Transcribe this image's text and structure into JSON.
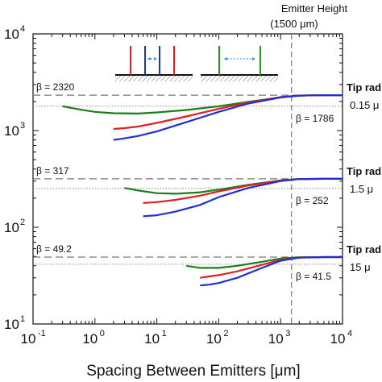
{
  "chart_data": {
    "type": "line",
    "xlabel": "Spacing Between Emitters [μm]",
    "xscale": "log",
    "yscale": "log",
    "xlim": [
      0.1,
      10000
    ],
    "ylim": [
      10,
      10000
    ],
    "x_tick_labels": [
      {
        "base": "10",
        "exp": "-1"
      },
      {
        "base": "10",
        "exp": "0"
      },
      {
        "base": "10",
        "exp": "1"
      },
      {
        "base": "10",
        "exp": "2"
      },
      {
        "base": "10",
        "exp": "3"
      },
      {
        "base": "10",
        "exp": "4"
      }
    ],
    "y_tick_labels": [
      {
        "base": "10",
        "exp": "1"
      },
      {
        "base": "10",
        "exp": "2"
      },
      {
        "base": "10",
        "exp": "3"
      },
      {
        "base": "10",
        "exp": "4"
      }
    ],
    "emitter_height": {
      "line1": "Emitter Height",
      "line2": "(1500 μm)",
      "x": 1500
    },
    "colors": {
      "green": "#1a7f1a",
      "red": "#e02020",
      "blue": "#1f2fd6",
      "axis": "#111111",
      "dash": "#7a7a7a",
      "dot": "#8a8a8a"
    },
    "groups": [
      {
        "tip_label_line1": "Tip rad",
        "tip_label_line2": "0.15 μ",
        "beta_max": 2320,
        "beta_max_label": "β = 2320",
        "beta_ref": 1786,
        "beta_ref_label": "β = 1786",
        "series": [
          {
            "color": "green",
            "x": [
              0.3,
              0.6,
              1,
              2,
              5,
              10,
              30,
              100,
              300,
              1000,
              2000,
              5000,
              10000
            ],
            "y": [
              1780,
              1640,
              1560,
              1510,
              1500,
              1540,
              1630,
              1780,
              1980,
              2200,
              2300,
              2320,
              2320
            ]
          },
          {
            "color": "red",
            "x": [
              2,
              3,
              5,
              10,
              30,
              100,
              300,
              1000,
              2000,
              5000,
              10000
            ],
            "y": [
              1040,
              1060,
              1100,
              1200,
              1400,
              1680,
              1950,
              2220,
              2300,
              2320,
              2320
            ]
          },
          {
            "color": "blue",
            "x": [
              2,
              3,
              5,
              10,
              30,
              100,
              300,
              1000,
              2000,
              5000,
              10000
            ],
            "y": [
              800,
              830,
              880,
              980,
              1220,
              1560,
              1900,
              2200,
              2300,
              2320,
              2320
            ]
          }
        ]
      },
      {
        "tip_label_line1": "Tip rad",
        "tip_label_line2": "1.5 μ",
        "beta_max": 317,
        "beta_max_label": "β = 317",
        "beta_ref": 252,
        "beta_ref_label": "β = 252",
        "series": [
          {
            "color": "green",
            "x": [
              3,
              5,
              10,
              20,
              50,
              100,
              300,
              1000,
              2000,
              5000,
              10000
            ],
            "y": [
              255,
              240,
              225,
              222,
              230,
              245,
              275,
              305,
              315,
              317,
              317
            ]
          },
          {
            "color": "red",
            "x": [
              6,
              10,
              20,
              50,
              100,
              300,
              1000,
              2000,
              5000,
              10000
            ],
            "y": [
              178,
              182,
              192,
              212,
              235,
              270,
              305,
              315,
              317,
              317
            ]
          },
          {
            "color": "blue",
            "x": [
              6,
              10,
              20,
              50,
              100,
              300,
              1000,
              2000,
              5000,
              10000
            ],
            "y": [
              130,
              133,
              145,
              170,
              205,
              255,
              300,
              315,
              317,
              317
            ]
          }
        ]
      },
      {
        "tip_label_line1": "Tip rad",
        "tip_label_line2": "15 μ",
        "beta_max": 49.2,
        "beta_max_label": "β = 49.2",
        "beta_ref": 41.5,
        "beta_ref_label": "β = 41.5",
        "series": [
          {
            "color": "green",
            "x": [
              30,
              50,
              100,
              200,
              500,
              1000,
              2000,
              5000,
              10000
            ],
            "y": [
              40,
              38,
              38,
              40,
              44,
              47.5,
              49,
              49.2,
              49.2
            ]
          },
          {
            "color": "red",
            "x": [
              50,
              70,
              100,
              200,
              500,
              1000,
              2000,
              5000,
              10000
            ],
            "y": [
              30,
              31,
              32,
              35,
              41,
              46,
              48.5,
              49.2,
              49.2
            ]
          },
          {
            "color": "blue",
            "x": [
              50,
              70,
              100,
              200,
              500,
              1000,
              2000,
              5000,
              10000
            ],
            "y": [
              25,
              25.5,
              26.5,
              30,
              38,
              45,
              48.5,
              49.2,
              49.2
            ]
          }
        ]
      }
    ]
  }
}
